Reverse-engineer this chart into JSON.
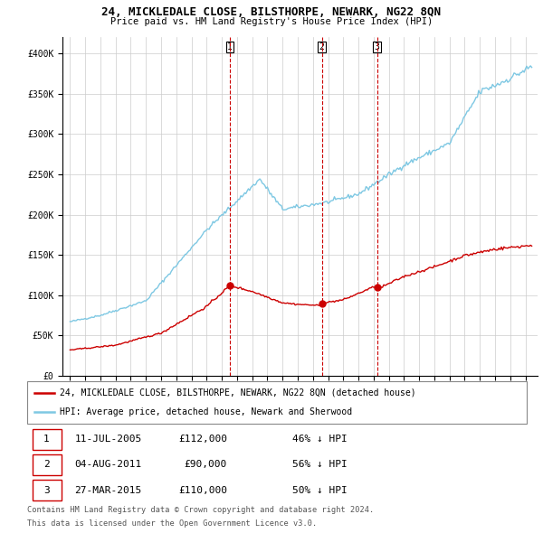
{
  "title": "24, MICKLEDALE CLOSE, BILSTHORPE, NEWARK, NG22 8QN",
  "subtitle": "Price paid vs. HM Land Registry's House Price Index (HPI)",
  "ylim": [
    0,
    420000
  ],
  "yticks": [
    0,
    50000,
    100000,
    150000,
    200000,
    250000,
    300000,
    350000,
    400000
  ],
  "hpi_color": "#7ec8e3",
  "price_color": "#cc0000",
  "background_color": "#ffffff",
  "grid_color": "#cccccc",
  "legend_label_price": "24, MICKLEDALE CLOSE, BILSTHORPE, NEWARK, NG22 8QN (detached house)",
  "legend_label_hpi": "HPI: Average price, detached house, Newark and Sherwood",
  "transactions": [
    {
      "label": "1",
      "date_str": "11-JUL-2005",
      "price": 112000,
      "pct": "46%",
      "x_year": 2005.53
    },
    {
      "label": "2",
      "date_str": "04-AUG-2011",
      "price": 90000,
      "pct": "56%",
      "x_year": 2011.59
    },
    {
      "label": "3",
      "date_str": "27-MAR-2015",
      "price": 110000,
      "pct": "50%",
      "x_year": 2015.23
    }
  ],
  "footer_line1": "Contains HM Land Registry data © Crown copyright and database right 2024.",
  "footer_line2": "This data is licensed under the Open Government Licence v3.0.",
  "xlim_start": 1994.5,
  "xlim_end": 2025.8
}
